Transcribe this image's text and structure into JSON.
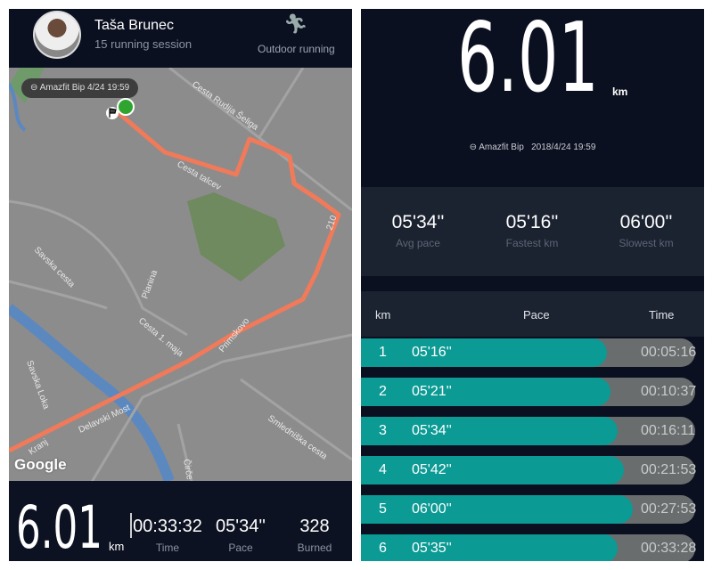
{
  "left": {
    "user_name": "Taša Brunec",
    "sessions": "15 running session",
    "activity_icon": "running-person-icon",
    "activity": "Outdoor running",
    "map": {
      "device_chip": "Amazfit Bip  4/24 19:59",
      "google": "Google",
      "labels": [
        "Cesta Rudija Šeliga",
        "Cesta talcev",
        "Savska cesta",
        "Planina",
        "Cesta 1. maja",
        "Primskovo",
        "Savska Loka",
        "Delavski Most",
        "Kranj",
        "Smledniška cesta",
        "Čirče",
        "210"
      ]
    },
    "distance": "6.01",
    "distance_unit": "km",
    "time": "00:33:32",
    "time_label": "Time",
    "pace": "05'34''",
    "pace_label": "Pace",
    "burned": "328",
    "burned_label": "Burned"
  },
  "right": {
    "distance": "6.01",
    "unit": "km",
    "device": "Amazfit Bip",
    "datetime": "2018/4/24 19:59",
    "stats": [
      {
        "value": "05'34''",
        "label": "Avg pace"
      },
      {
        "value": "05'16''",
        "label": "Fastest km"
      },
      {
        "value": "06'00''",
        "label": "Slowest km"
      }
    ],
    "table_headers": {
      "km": "km",
      "pace": "Pace",
      "time": "Time"
    },
    "splits": [
      {
        "km": "1",
        "pace": "05'16''",
        "time": "00:05:16",
        "fill": 0.736
      },
      {
        "km": "2",
        "pace": "05'21''",
        "time": "00:10:37",
        "fill": 0.747
      },
      {
        "km": "3",
        "pace": "05'34''",
        "time": "00:16:11",
        "fill": 0.768
      },
      {
        "km": "4",
        "pace": "05'42''",
        "time": "00:21:53",
        "fill": 0.787
      },
      {
        "km": "5",
        "pace": "06'00''",
        "time": "00:27:53",
        "fill": 0.813
      },
      {
        "km": "6",
        "pace": "05'35''",
        "time": "00:33:28",
        "fill": 0.768
      }
    ]
  },
  "colors": {
    "route": "#f07a5a",
    "teal": "#0b9a94",
    "start": "#2fa52f"
  }
}
